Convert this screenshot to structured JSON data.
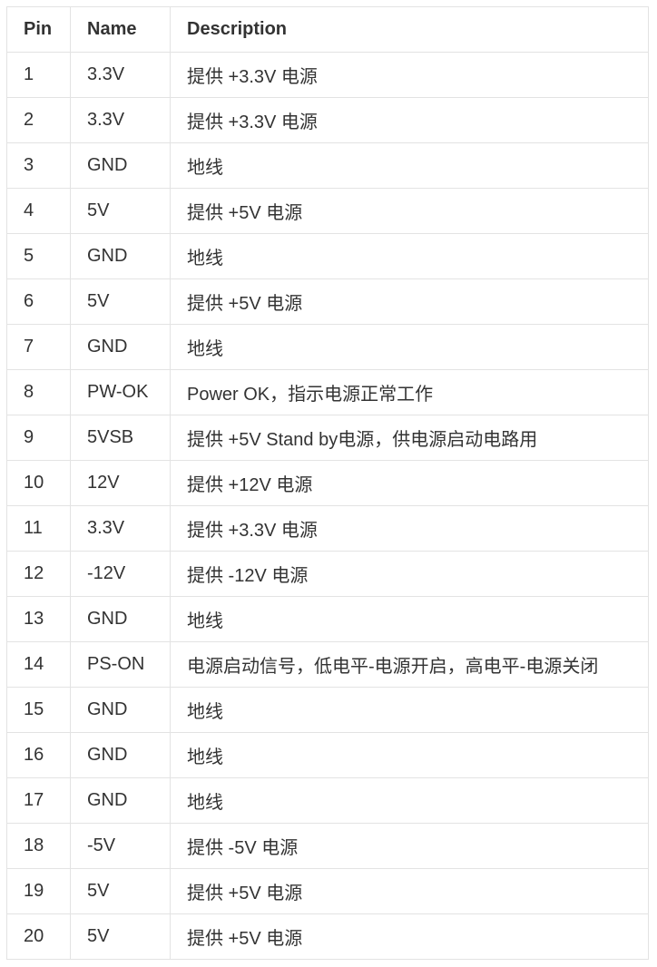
{
  "table": {
    "headers": [
      "Pin",
      "Name",
      "Description"
    ],
    "rows": [
      [
        "1",
        "3.3V",
        "提供 +3.3V 电源"
      ],
      [
        "2",
        "3.3V",
        "提供 +3.3V 电源"
      ],
      [
        "3",
        "GND",
        "地线"
      ],
      [
        "4",
        "5V",
        "提供 +5V 电源"
      ],
      [
        "5",
        "GND",
        "地线"
      ],
      [
        "6",
        "5V",
        "提供 +5V 电源"
      ],
      [
        "7",
        "GND",
        "地线"
      ],
      [
        "8",
        "PW-OK",
        "Power OK，指示电源正常工作"
      ],
      [
        "9",
        "5VSB",
        "提供 +5V Stand by电源，供电源启动电路用"
      ],
      [
        "10",
        "12V",
        "提供 +12V 电源"
      ],
      [
        "11",
        "3.3V",
        "提供 +3.3V 电源"
      ],
      [
        "12",
        "-12V",
        "提供 -12V 电源"
      ],
      [
        "13",
        "GND",
        "地线"
      ],
      [
        "14",
        "PS-ON",
        "电源启动信号，低电平-电源开启，高电平-电源关闭"
      ],
      [
        "15",
        "GND",
        "地线"
      ],
      [
        "16",
        "GND",
        "地线"
      ],
      [
        "17",
        "GND",
        "地线"
      ],
      [
        "18",
        "-5V",
        "提供 -5V 电源"
      ],
      [
        "19",
        "5V",
        "提供 +5V 电源"
      ],
      [
        "20",
        "5V",
        "提供 +5V 电源"
      ]
    ]
  }
}
